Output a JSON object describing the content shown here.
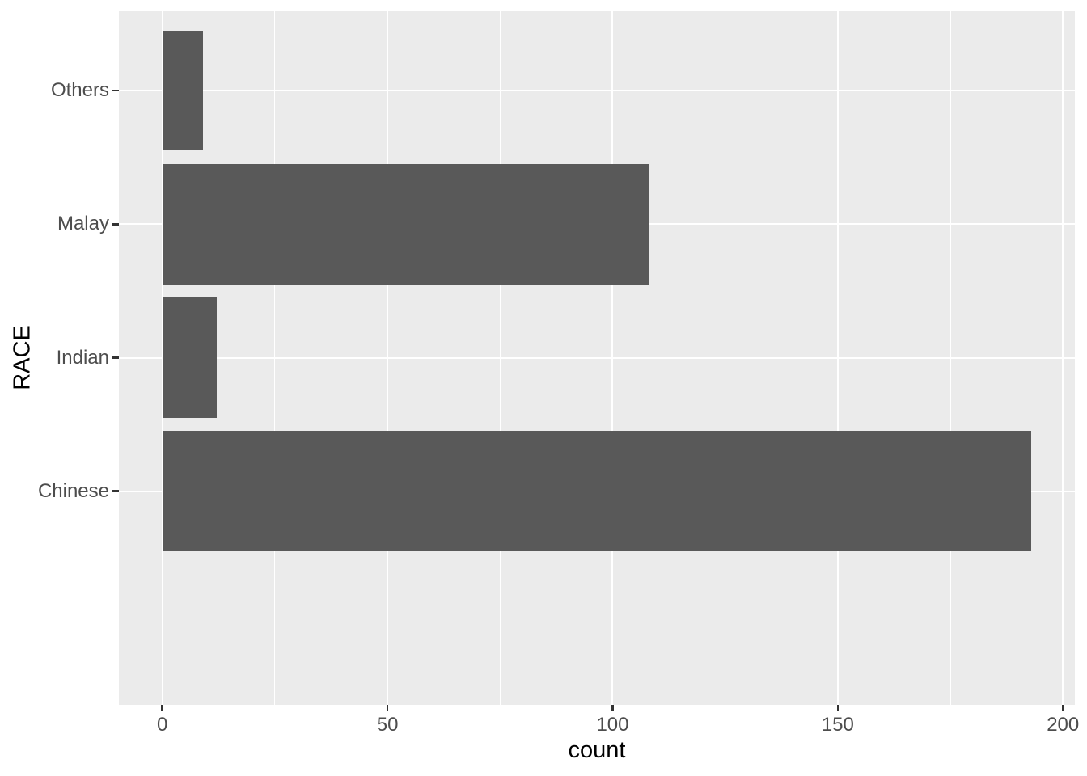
{
  "chart_data": {
    "type": "bar",
    "orientation": "horizontal",
    "title": "",
    "xlabel": "count",
    "ylabel": "RACE",
    "categories_top_to_bottom": [
      "Others",
      "Malay",
      "Indian",
      "Chinese"
    ],
    "values": [
      9,
      108,
      12,
      193
    ],
    "x_ticks": [
      0,
      50,
      100,
      150,
      200
    ],
    "x_minor_ticks": [
      25,
      75,
      125,
      175
    ],
    "xlim": [
      -9.65,
      202.65
    ],
    "grid": "white major and minor vertical lines, white major horizontal lines at category centers",
    "legend": "none",
    "colors": {
      "bar_fill": "#595959",
      "panel_background": "#EBEBEB",
      "grid_line": "#FFFFFF",
      "axis_text": "#4D4D4D",
      "axis_title": "#000000",
      "tick_mark": "#333333",
      "outer_background": "#FFFFFF"
    }
  }
}
